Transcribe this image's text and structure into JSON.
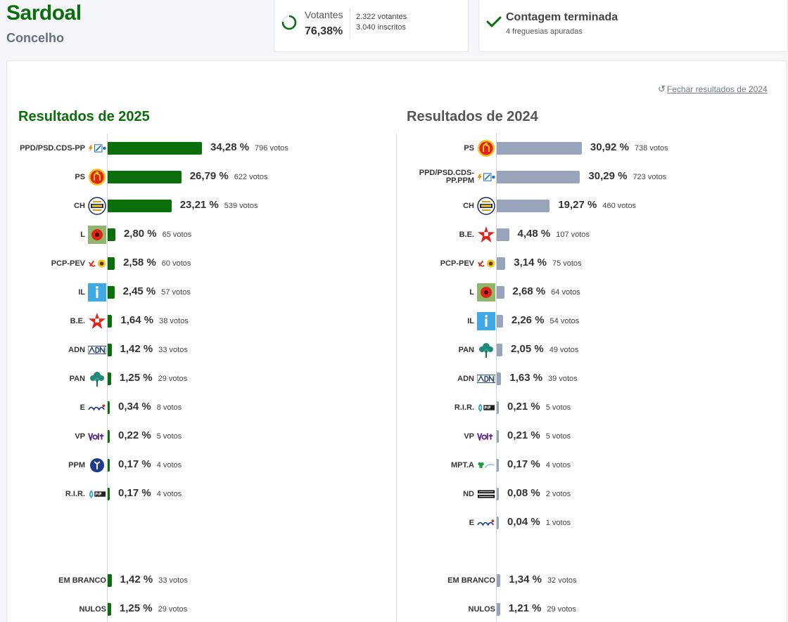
{
  "header": {
    "title": "Sardoal",
    "subtitle": "Concelho"
  },
  "votantes": {
    "label": "Votantes",
    "pct": "76,38%",
    "votantes": "2.322 votantes",
    "inscritos": "3.040 inscritos",
    "fraction": 0.7638
  },
  "contagem": {
    "title": "Contagem terminada",
    "sub": "4 freguesias apuradas"
  },
  "close_link": "Fechar resultados de 2024",
  "colors": {
    "green": "#0a6e0a",
    "slate": "#98a4ba"
  },
  "results2025": {
    "title": "Resultados de 2025",
    "rows": [
      {
        "name": "PPD/PSD.CDS-PP",
        "logo": "ad-logo",
        "pct": 34.28,
        "pct_label": "34,28 %",
        "votes": "796 votos"
      },
      {
        "name": "PS",
        "logo": "ps-logo",
        "pct": 26.79,
        "pct_label": "26,79 %",
        "votes": "622 votos"
      },
      {
        "name": "CH",
        "logo": "chega-logo",
        "pct": 23.21,
        "pct_label": "23,21 %",
        "votes": "539 votos"
      },
      {
        "name": "L",
        "logo": "livre-logo",
        "pct": 2.8,
        "pct_label": "2,80 %",
        "votes": "65 votos"
      },
      {
        "name": "PCP-PEV",
        "logo": "cdu-logo",
        "pct": 2.58,
        "pct_label": "2,58 %",
        "votes": "60 votos"
      },
      {
        "name": "IL",
        "logo": "il-logo",
        "pct": 2.45,
        "pct_label": "2,45 %",
        "votes": "57 votos"
      },
      {
        "name": "B.E.",
        "logo": "be-logo",
        "pct": 1.64,
        "pct_label": "1,64 %",
        "votes": "38 votos"
      },
      {
        "name": "ADN",
        "logo": "adn-logo",
        "pct": 1.42,
        "pct_label": "1,42 %",
        "votes": "33 votos"
      },
      {
        "name": "PAN",
        "logo": "pan-logo",
        "pct": 1.25,
        "pct_label": "1,25 %",
        "votes": "29 votos"
      },
      {
        "name": "E",
        "logo": "ergue-te-logo",
        "pct": 0.34,
        "pct_label": "0,34 %",
        "votes": "8 votos"
      },
      {
        "name": "VP",
        "logo": "volt-logo",
        "pct": 0.22,
        "pct_label": "0,22 %",
        "votes": "5 votos"
      },
      {
        "name": "PPM",
        "logo": "ppm-logo",
        "pct": 0.17,
        "pct_label": "0,17 %",
        "votes": "4 votos"
      },
      {
        "name": "R.I.R.",
        "logo": "rir-logo",
        "pct": 0.17,
        "pct_label": "0,17 %",
        "votes": "4 votos"
      }
    ],
    "blank": {
      "name": "EM BRANCO",
      "pct": 1.42,
      "pct_label": "1,42 %",
      "votes": "33 votos"
    },
    "null": {
      "name": "NULOS",
      "pct": 1.25,
      "pct_label": "1,25 %",
      "votes": "29 votos"
    }
  },
  "results2024": {
    "title": "Resultados de 2024",
    "rows": [
      {
        "name": "PS",
        "logo": "ps-logo",
        "pct": 30.92,
        "pct_label": "30,92 %",
        "votes": "738 votos"
      },
      {
        "name": "PPD/PSD.CDS-PP.PPM",
        "logo": "ad-logo",
        "pct": 30.29,
        "pct_label": "30,29 %",
        "votes": "723 votos"
      },
      {
        "name": "CH",
        "logo": "chega-logo",
        "pct": 19.27,
        "pct_label": "19,27 %",
        "votes": "460 votos"
      },
      {
        "name": "B.E.",
        "logo": "be-logo",
        "pct": 4.48,
        "pct_label": "4,48 %",
        "votes": "107 votos"
      },
      {
        "name": "PCP-PEV",
        "logo": "cdu-logo",
        "pct": 3.14,
        "pct_label": "3,14 %",
        "votes": "75 votos"
      },
      {
        "name": "L",
        "logo": "livre-logo",
        "pct": 2.68,
        "pct_label": "2,68 %",
        "votes": "64 votos"
      },
      {
        "name": "IL",
        "logo": "il-logo",
        "pct": 2.26,
        "pct_label": "2,26 %",
        "votes": "54 votos"
      },
      {
        "name": "PAN",
        "logo": "pan-logo",
        "pct": 2.05,
        "pct_label": "2,05 %",
        "votes": "49 votos"
      },
      {
        "name": "ADN",
        "logo": "adn-logo",
        "pct": 1.63,
        "pct_label": "1,63 %",
        "votes": "39 votos"
      },
      {
        "name": "R.I.R.",
        "logo": "rir-logo",
        "pct": 0.21,
        "pct_label": "0,21 %",
        "votes": "5 votos"
      },
      {
        "name": "VP",
        "logo": "volt-logo",
        "pct": 0.21,
        "pct_label": "0,21 %",
        "votes": "5 votos"
      },
      {
        "name": "MPT.A",
        "logo": "mpt-logo",
        "pct": 0.17,
        "pct_label": "0,17 %",
        "votes": "4 votos"
      },
      {
        "name": "ND",
        "logo": "nova-direita-logo",
        "pct": 0.08,
        "pct_label": "0,08 %",
        "votes": "2 votos"
      },
      {
        "name": "E",
        "logo": "ergue-te-logo",
        "pct": 0.04,
        "pct_label": "0,04 %",
        "votes": "1 votos"
      }
    ],
    "blank": {
      "name": "EM BRANCO",
      "pct": 1.34,
      "pct_label": "1,34 %",
      "votes": "32 votos"
    },
    "null": {
      "name": "NULOS",
      "pct": 1.21,
      "pct_label": "1,21 %",
      "votes": "29 votos"
    }
  }
}
